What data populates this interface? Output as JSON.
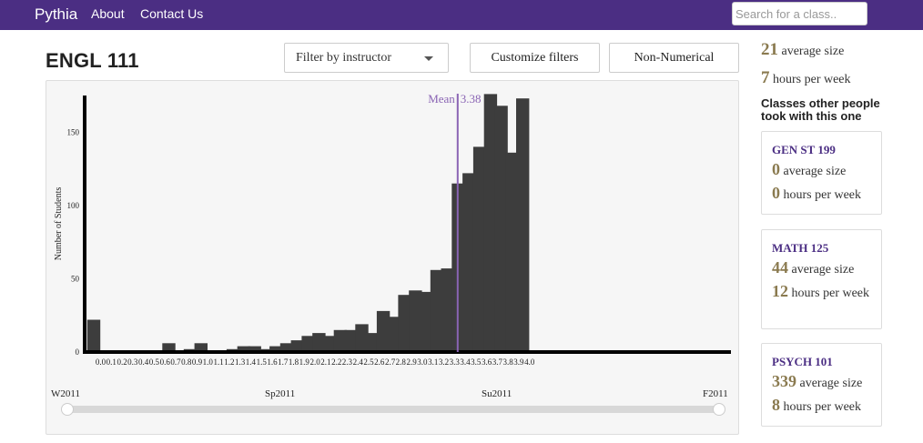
{
  "nav": {
    "brand": "Pythia",
    "about": "About",
    "contact": "Contact Us",
    "search_placeholder": "Search for a class.."
  },
  "course": {
    "title": "ENGL 111",
    "filter_instructor": "Filter by instructor",
    "customize_filters": "Customize filters",
    "non_numerical": "Non-Numerical"
  },
  "stats": {
    "avg_size": "21",
    "avg_size_label": "average size",
    "hours": "7",
    "hours_label": "hours per week"
  },
  "others": {
    "title": "Classes other people took with this one",
    "classes": [
      {
        "name": "GEN ST 199",
        "avg_size": "0",
        "avg_size_label": "average size",
        "hours": "0",
        "hours_label": "hours per week"
      },
      {
        "name": "MATH 125",
        "avg_size": "44",
        "avg_size_label": "average size",
        "hours": "12",
        "hours_label": "hours per week"
      },
      {
        "name": "PSYCH 101",
        "avg_size": "339",
        "avg_size_label": "average size",
        "hours": "8",
        "hours_label": "hours per week"
      }
    ]
  },
  "colors": {
    "navbar": "#4b2e83",
    "bar": "#3d3d3d",
    "mean_line": "#8a64b4",
    "accent_number": "#8a7a4f"
  },
  "chart_data": {
    "type": "bar",
    "ylabel": "Number of Students",
    "ylim": [
      0,
      175
    ],
    "yticks": [
      0,
      50,
      100,
      150
    ],
    "categories": [
      "0.0",
      "0.7",
      "0.8",
      "0.9",
      "1.0",
      "1.3",
      "1.4",
      "1.5",
      "1.6",
      "1.7",
      "1.8",
      "1.9",
      "2.0",
      "2.1",
      "2.2",
      "2.3",
      "2.4",
      "2.5",
      "2.6",
      "2.7",
      "2.8",
      "2.9",
      "3.0",
      "3.1",
      "3.2",
      "3.3",
      "3.4",
      "3.5",
      "3.6",
      "3.7",
      "3.8",
      "3.9",
      "4.0"
    ],
    "values": [
      22,
      6,
      1,
      2,
      6,
      2,
      4,
      4,
      2,
      4,
      6,
      8,
      11,
      13,
      11,
      15,
      15,
      19,
      13,
      28,
      24,
      39,
      42,
      41,
      56,
      57,
      115,
      122,
      140,
      176,
      168,
      136,
      173
    ],
    "x_tick_labels": [
      "0.0",
      "0.1",
      "0.2",
      "0.3",
      "0.4",
      "0.5",
      "0.6",
      "0.7",
      "0.8",
      "0.9",
      "1.0",
      "1.1",
      "1.2",
      "1.3",
      "1.4",
      "1.5",
      "1.6",
      "1.7",
      "1.8",
      "1.9",
      "2.0",
      "2.1",
      "2.2",
      "2.3",
      "2.4",
      "2.5",
      "2.6",
      "2.7",
      "2.8",
      "2.9",
      "3.0",
      "3.1",
      "3.2",
      "3.3",
      "3.4",
      "3.5",
      "3.6",
      "3.7",
      "3.8",
      "3.9",
      "4.0"
    ],
    "mean_label": "Mean",
    "mean_value": "3.38",
    "mean_x_slot": 33.3,
    "grid": false,
    "time_slider": {
      "labels": [
        "W2011",
        "Sp2011",
        "Su2011",
        "F2011"
      ],
      "range_start": "W2011",
      "range_end": "F2011"
    }
  }
}
